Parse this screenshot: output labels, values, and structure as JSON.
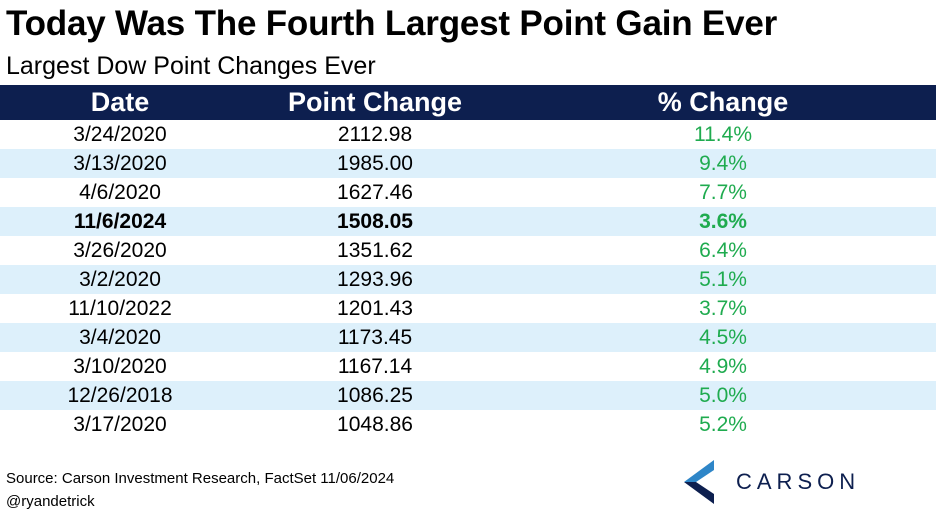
{
  "title": "Today Was The Fourth Largest Point Gain Ever",
  "subtitle": "Largest Dow Point Changes Ever",
  "colors": {
    "header_bg": "#0d1f4f",
    "stripe": "#ddf0fb",
    "pct_text": "#1fab4f",
    "logo_blue": "#2e86c8",
    "logo_navy": "#0d1f4f"
  },
  "chart_data": {
    "type": "table",
    "columns": [
      "Date",
      "Point Change",
      "% Change"
    ],
    "rows": [
      {
        "date": "3/24/2020",
        "points": "2112.98",
        "pct": "11.4%"
      },
      {
        "date": "3/13/2020",
        "points": "1985.00",
        "pct": "9.4%"
      },
      {
        "date": "4/6/2020",
        "points": "1627.46",
        "pct": "7.7%"
      },
      {
        "date": "11/6/2024",
        "points": "1508.05",
        "pct": "3.6%",
        "highlight": true
      },
      {
        "date": "3/26/2020",
        "points": "1351.62",
        "pct": "6.4%"
      },
      {
        "date": "3/2/2020",
        "points": "1293.96",
        "pct": "5.1%"
      },
      {
        "date": "11/10/2022",
        "points": "1201.43",
        "pct": "3.7%"
      },
      {
        "date": "3/4/2020",
        "points": "1173.45",
        "pct": "4.5%"
      },
      {
        "date": "3/10/2020",
        "points": "1167.14",
        "pct": "4.9%"
      },
      {
        "date": "12/26/2018",
        "points": "1086.25",
        "pct": "5.0%"
      },
      {
        "date": "3/17/2020",
        "points": "1048.86",
        "pct": "5.2%"
      }
    ]
  },
  "footer": {
    "source": "Source: Carson Investment Research, FactSet 11/06/2024",
    "handle": "@ryandetrick"
  },
  "logo": {
    "text": "CARSON",
    "icon": "carson-chevron-icon"
  }
}
